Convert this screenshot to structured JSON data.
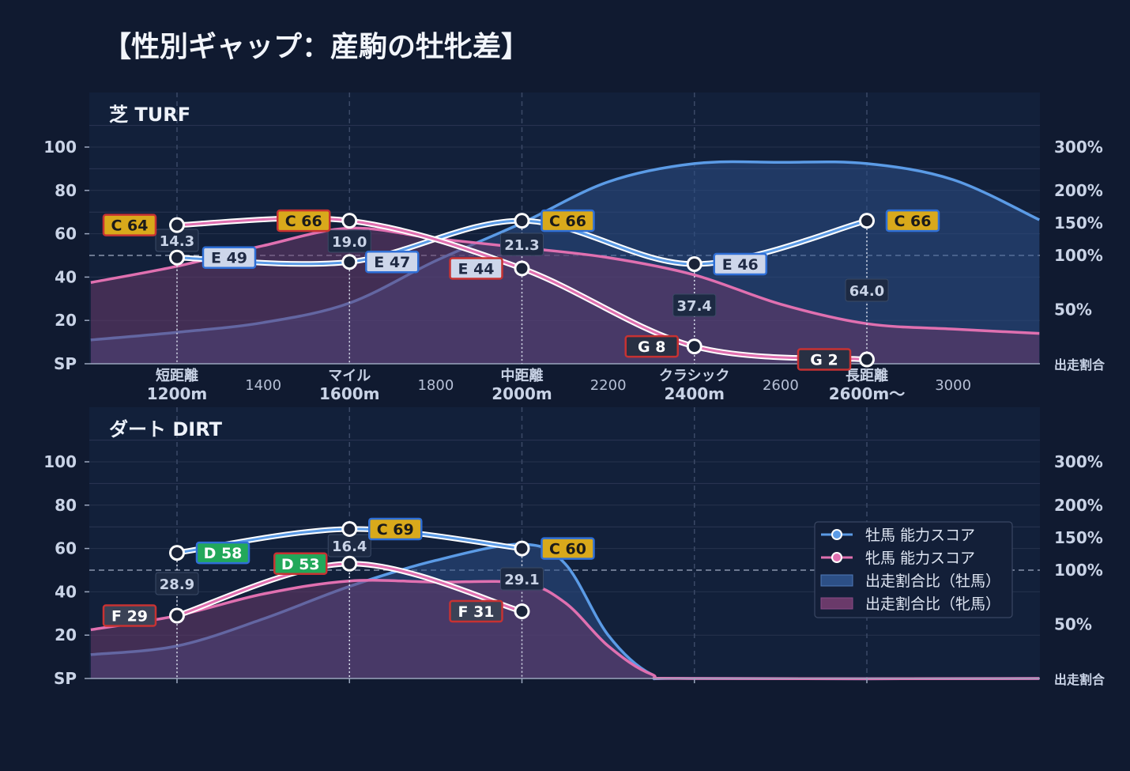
{
  "title": "【性別ギャップ：産駒の牡牝差】",
  "colors": {
    "background": "#101a30",
    "panel": "#12203a",
    "male": "#5b9be6",
    "female": "#e070b0",
    "grade_C": "#d9a91b",
    "grade_D": "#22a85a",
    "grade_E": "#cdd6ea",
    "grade_F": "#3b4256",
    "grade_G": "#283043"
  },
  "chart_data": [
    {
      "type": "line",
      "panel_label": "芝 TURF",
      "left_axis": {
        "ticks": [
          "SP",
          "20",
          "40",
          "60",
          "80",
          "100"
        ],
        "ylim": [
          0,
          100
        ]
      },
      "right_axis": {
        "ticks": [
          "出走割合",
          "50%",
          "100%",
          "150%",
          "200%",
          "300%"
        ]
      },
      "x_ticks": [
        {
          "label": "短距離\n1200m",
          "x": 1200
        },
        {
          "label": "1400",
          "x": 1400
        },
        {
          "label": "マイル\n1600m",
          "x": 1600
        },
        {
          "label": "1800",
          "x": 1800
        },
        {
          "label": "中距離\n2000m",
          "x": 2000
        },
        {
          "label": "2200",
          "x": 2200
        },
        {
          "label": "クラシック\n2400m",
          "x": 2400
        },
        {
          "label": "2600",
          "x": 2600
        },
        {
          "label": "長距離\n2600m〜",
          "x": 2800
        },
        {
          "label": "3000",
          "x": 3000
        }
      ],
      "series": [
        {
          "name": "牡馬 能力スコア",
          "points": [
            {
              "x": 1200,
              "y": 49,
              "grade": "E 49"
            },
            {
              "x": 1600,
              "y": 47,
              "grade": "E 47"
            },
            {
              "x": 2000,
              "y": 66,
              "grade": "C 66"
            },
            {
              "x": 2400,
              "y": 46,
              "grade": "E 46"
            },
            {
              "x": 2800,
              "y": 66,
              "grade": "C 66"
            }
          ]
        },
        {
          "name": "牝馬 能力スコア",
          "points": [
            {
              "x": 1200,
              "y": 64,
              "grade": "C 64"
            },
            {
              "x": 1600,
              "y": 66,
              "grade": "C 66"
            },
            {
              "x": 2000,
              "y": 44,
              "grade": "E 44"
            },
            {
              "x": 2400,
              "y": 8,
              "grade": "G 8"
            },
            {
              "x": 2800,
              "y": 2,
              "grade": "G 2"
            }
          ]
        }
      ],
      "ratio_labels": [
        {
          "x": 1200,
          "value": "14.3"
        },
        {
          "x": 1600,
          "value": "19.0"
        },
        {
          "x": 2000,
          "value": "21.3"
        },
        {
          "x": 2400,
          "value": "37.4"
        },
        {
          "x": 2800,
          "value": "64.0"
        }
      ],
      "area_series": [
        {
          "name": "出走割合比（牡馬）",
          "x": [
            1000,
            1200,
            1400,
            1600,
            1800,
            2000,
            2200,
            2400,
            2600,
            2800,
            3000,
            3200
          ],
          "y_percent": [
            22,
            29,
            38,
            56,
            95,
            150,
            220,
            262,
            265,
            262,
            225,
            155
          ]
        },
        {
          "name": "出走割合比（牝馬）",
          "x": [
            1000,
            1200,
            1400,
            1600,
            1800,
            2000,
            2200,
            2400,
            2600,
            2800,
            3000,
            3200
          ],
          "y_percent": [
            75,
            90,
            115,
            142,
            126,
            112,
            98,
            82,
            55,
            37,
            32,
            28
          ]
        }
      ]
    },
    {
      "type": "line",
      "panel_label": "ダート DIRT",
      "left_axis": {
        "ticks": [
          "SP",
          "20",
          "40",
          "60",
          "80",
          "100"
        ],
        "ylim": [
          0,
          100
        ]
      },
      "right_axis": {
        "ticks": [
          "出走割合",
          "50%",
          "100%",
          "150%",
          "200%",
          "300%"
        ]
      },
      "series": [
        {
          "name": "牡馬 能力スコア",
          "points": [
            {
              "x": 1200,
              "y": 58,
              "grade": "D 58"
            },
            {
              "x": 1600,
              "y": 69,
              "grade": "C 69"
            },
            {
              "x": 2000,
              "y": 60,
              "grade": "C 60"
            }
          ]
        },
        {
          "name": "牝馬 能力スコア",
          "points": [
            {
              "x": 1200,
              "y": 29,
              "grade": "F 29"
            },
            {
              "x": 1600,
              "y": 53,
              "grade": "D 53"
            },
            {
              "x": 2000,
              "y": 31,
              "grade": "F 31"
            }
          ]
        }
      ],
      "ratio_labels": [
        {
          "x": 1200,
          "value": "28.9"
        },
        {
          "x": 1600,
          "value": "16.4"
        },
        {
          "x": 2000,
          "value": "29.1"
        }
      ],
      "area_series": [
        {
          "name": "出走割合比（牡馬）",
          "x": [
            1000,
            1200,
            1400,
            1600,
            1800,
            2000,
            2100,
            2200,
            2300,
            2400,
            3200
          ],
          "y_percent": [
            22,
            30,
            55,
            85,
            115,
            140,
            110,
            40,
            4,
            0,
            0
          ]
        },
        {
          "name": "出走割合比（牝馬）",
          "x": [
            1000,
            1200,
            1400,
            1600,
            1800,
            2000,
            2100,
            2200,
            2300,
            2400,
            3200
          ],
          "y_percent": [
            45,
            58,
            78,
            90,
            89,
            88,
            70,
            30,
            4,
            0,
            0
          ]
        }
      ]
    }
  ],
  "legend": {
    "items": [
      {
        "label": "牡馬 能力スコア",
        "kind": "line",
        "color": "#5b9be6"
      },
      {
        "label": "牝馬 能力スコア",
        "kind": "line",
        "color": "#e070b0"
      },
      {
        "label": "出走割合比（牡馬）",
        "kind": "area",
        "color": "#2c4f86"
      },
      {
        "label": "出走割合比（牝馬）",
        "kind": "area",
        "color": "#6a3a6a"
      }
    ]
  }
}
